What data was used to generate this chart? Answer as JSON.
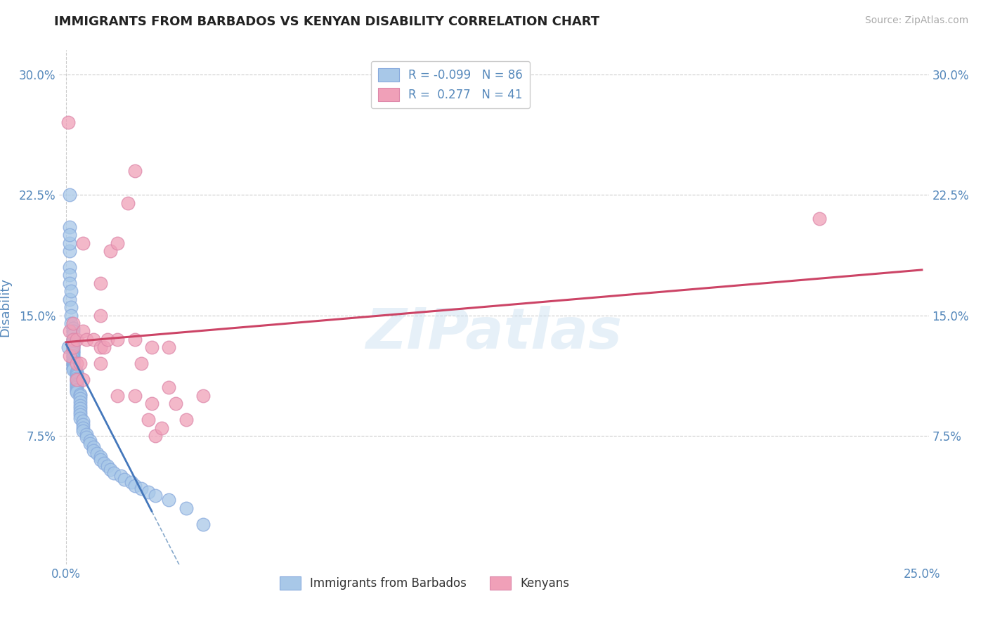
{
  "title": "IMMIGRANTS FROM BARBADOS VS KENYAN DISABILITY CORRELATION CHART",
  "source": "Source: ZipAtlas.com",
  "ylabel_label": "Disability",
  "xlim": [
    -0.002,
    0.252
  ],
  "ylim": [
    -0.005,
    0.315
  ],
  "ytick_positions": [
    0.075,
    0.15,
    0.225,
    0.3
  ],
  "ytick_labels": [
    "7.5%",
    "15.0%",
    "22.5%",
    "30.0%"
  ],
  "xtick_positions": [
    0.0,
    0.25
  ],
  "xtick_labels": [
    "0.0%",
    "25.0%"
  ],
  "background_color": "#ffffff",
  "grid_color": "#cccccc",
  "scatter_blue_color": "#a8c8e8",
  "scatter_pink_color": "#f0a0b8",
  "line_blue_solid_color": "#4477bb",
  "line_blue_dash_color": "#88aacc",
  "line_pink_color": "#cc4466",
  "legend_R1": "-0.099",
  "legend_N1": "86",
  "legend_R2": "0.277",
  "legend_N2": "41",
  "title_color": "#222222",
  "axis_label_color": "#5588bb",
  "tick_color": "#5588bb",
  "watermark": "ZIPatlas",
  "blue_x": [
    0.0005,
    0.001,
    0.001,
    0.001,
    0.001,
    0.001,
    0.001,
    0.001,
    0.001,
    0.001,
    0.0015,
    0.0015,
    0.0015,
    0.0015,
    0.002,
    0.002,
    0.002,
    0.002,
    0.002,
    0.002,
    0.002,
    0.002,
    0.002,
    0.002,
    0.002,
    0.002,
    0.002,
    0.002,
    0.002,
    0.002,
    0.002,
    0.002,
    0.002,
    0.002,
    0.002,
    0.002,
    0.003,
    0.003,
    0.003,
    0.003,
    0.003,
    0.003,
    0.003,
    0.003,
    0.003,
    0.003,
    0.003,
    0.003,
    0.003,
    0.003,
    0.004,
    0.004,
    0.004,
    0.004,
    0.004,
    0.004,
    0.004,
    0.004,
    0.004,
    0.005,
    0.005,
    0.005,
    0.005,
    0.006,
    0.006,
    0.007,
    0.007,
    0.008,
    0.008,
    0.009,
    0.01,
    0.01,
    0.011,
    0.012,
    0.013,
    0.014,
    0.016,
    0.017,
    0.019,
    0.02,
    0.022,
    0.024,
    0.026,
    0.03,
    0.035,
    0.04
  ],
  "blue_y": [
    0.13,
    0.205,
    0.19,
    0.225,
    0.195,
    0.2,
    0.18,
    0.175,
    0.17,
    0.16,
    0.165,
    0.155,
    0.15,
    0.145,
    0.142,
    0.14,
    0.138,
    0.135,
    0.133,
    0.132,
    0.131,
    0.13,
    0.129,
    0.128,
    0.127,
    0.126,
    0.125,
    0.124,
    0.123,
    0.122,
    0.121,
    0.12,
    0.119,
    0.118,
    0.117,
    0.116,
    0.115,
    0.114,
    0.113,
    0.112,
    0.111,
    0.11,
    0.109,
    0.108,
    0.107,
    0.106,
    0.105,
    0.104,
    0.103,
    0.102,
    0.101,
    0.1,
    0.098,
    0.096,
    0.094,
    0.092,
    0.09,
    0.088,
    0.086,
    0.084,
    0.082,
    0.08,
    0.078,
    0.076,
    0.074,
    0.072,
    0.07,
    0.068,
    0.066,
    0.064,
    0.062,
    0.06,
    0.058,
    0.056,
    0.054,
    0.052,
    0.05,
    0.048,
    0.046,
    0.044,
    0.042,
    0.04,
    0.038,
    0.035,
    0.03,
    0.02
  ],
  "pink_x": [
    0.0005,
    0.001,
    0.001,
    0.002,
    0.002,
    0.002,
    0.003,
    0.003,
    0.003,
    0.004,
    0.005,
    0.005,
    0.005,
    0.006,
    0.008,
    0.01,
    0.01,
    0.01,
    0.01,
    0.011,
    0.012,
    0.013,
    0.015,
    0.015,
    0.015,
    0.018,
    0.02,
    0.02,
    0.02,
    0.022,
    0.024,
    0.025,
    0.025,
    0.026,
    0.028,
    0.03,
    0.03,
    0.032,
    0.035,
    0.04,
    0.22
  ],
  "pink_y": [
    0.27,
    0.14,
    0.125,
    0.135,
    0.145,
    0.13,
    0.135,
    0.12,
    0.11,
    0.12,
    0.195,
    0.14,
    0.11,
    0.135,
    0.135,
    0.17,
    0.15,
    0.13,
    0.12,
    0.13,
    0.135,
    0.19,
    0.195,
    0.135,
    0.1,
    0.22,
    0.24,
    0.135,
    0.1,
    0.12,
    0.085,
    0.13,
    0.095,
    0.075,
    0.08,
    0.13,
    0.105,
    0.095,
    0.085,
    0.1,
    0.21
  ]
}
